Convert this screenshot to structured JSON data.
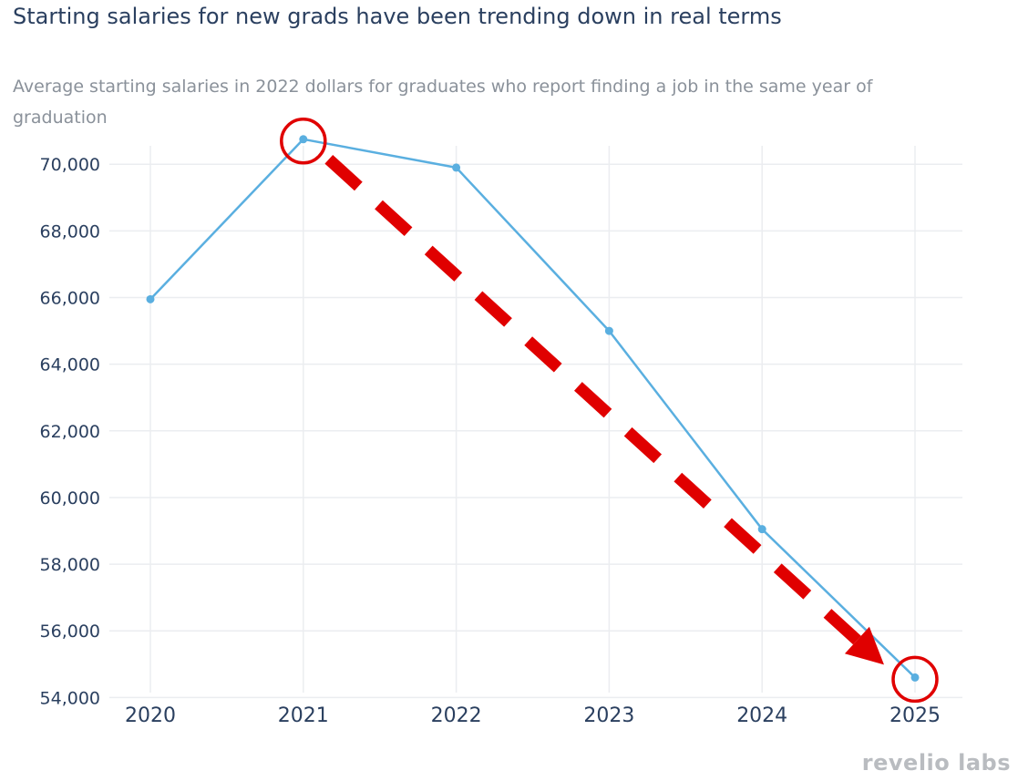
{
  "chart_data": {
    "type": "line",
    "title": "Starting salaries for new grads have been trending down in real terms",
    "subtitle": "Average starting salaries in 2022 dollars for graduates who report finding a job in the same year of graduation",
    "xlabel": "",
    "ylabel": "",
    "categories": [
      "2020",
      "2021",
      "2022",
      "2023",
      "2024",
      "2025"
    ],
    "series": [
      {
        "name": "Average starting salary",
        "values": [
          65950,
          70750,
          69900,
          65000,
          59050,
          54600
        ]
      }
    ],
    "ylim": [
      53600,
      71100
    ],
    "yticks": [
      54000,
      56000,
      58000,
      60000,
      62000,
      64000,
      66000,
      68000,
      70000
    ],
    "ytick_labels": [
      "54,000",
      "56,000",
      "58,000",
      "60,000",
      "62,000",
      "64,000",
      "66,000",
      "68,000",
      "70,000"
    ],
    "grid": true,
    "line_color": "#5aafe0",
    "annotations": [
      {
        "type": "circle",
        "category": "2021",
        "color": "#e00000"
      },
      {
        "type": "circle",
        "category": "2025",
        "color": "#e00000"
      },
      {
        "type": "dashed-arrow",
        "from": "2021",
        "to": "2025",
        "color": "#e00000"
      }
    ]
  },
  "brand": "revelio labs"
}
